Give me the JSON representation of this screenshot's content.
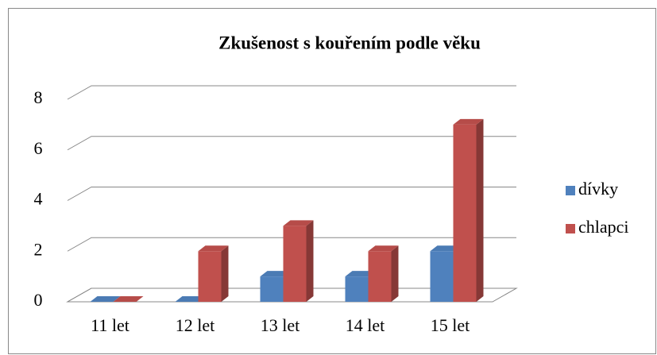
{
  "chart_data": {
    "type": "bar3d",
    "title": "Zkušenost s kouřením podle věku",
    "categories": [
      "11 let",
      "12 let",
      "13 let",
      "14 let",
      "15 let"
    ],
    "series": [
      {
        "name": "dívky",
        "color": "#4f81bd",
        "values": [
          0,
          0,
          1,
          1,
          2
        ]
      },
      {
        "name": "chlapci",
        "color": "#c0504d",
        "values": [
          0,
          2,
          3,
          2,
          7
        ]
      }
    ],
    "ylim": [
      0,
      8
    ],
    "yticks": [
      0,
      2,
      4,
      6,
      8
    ],
    "grid": true,
    "legend": "right"
  }
}
